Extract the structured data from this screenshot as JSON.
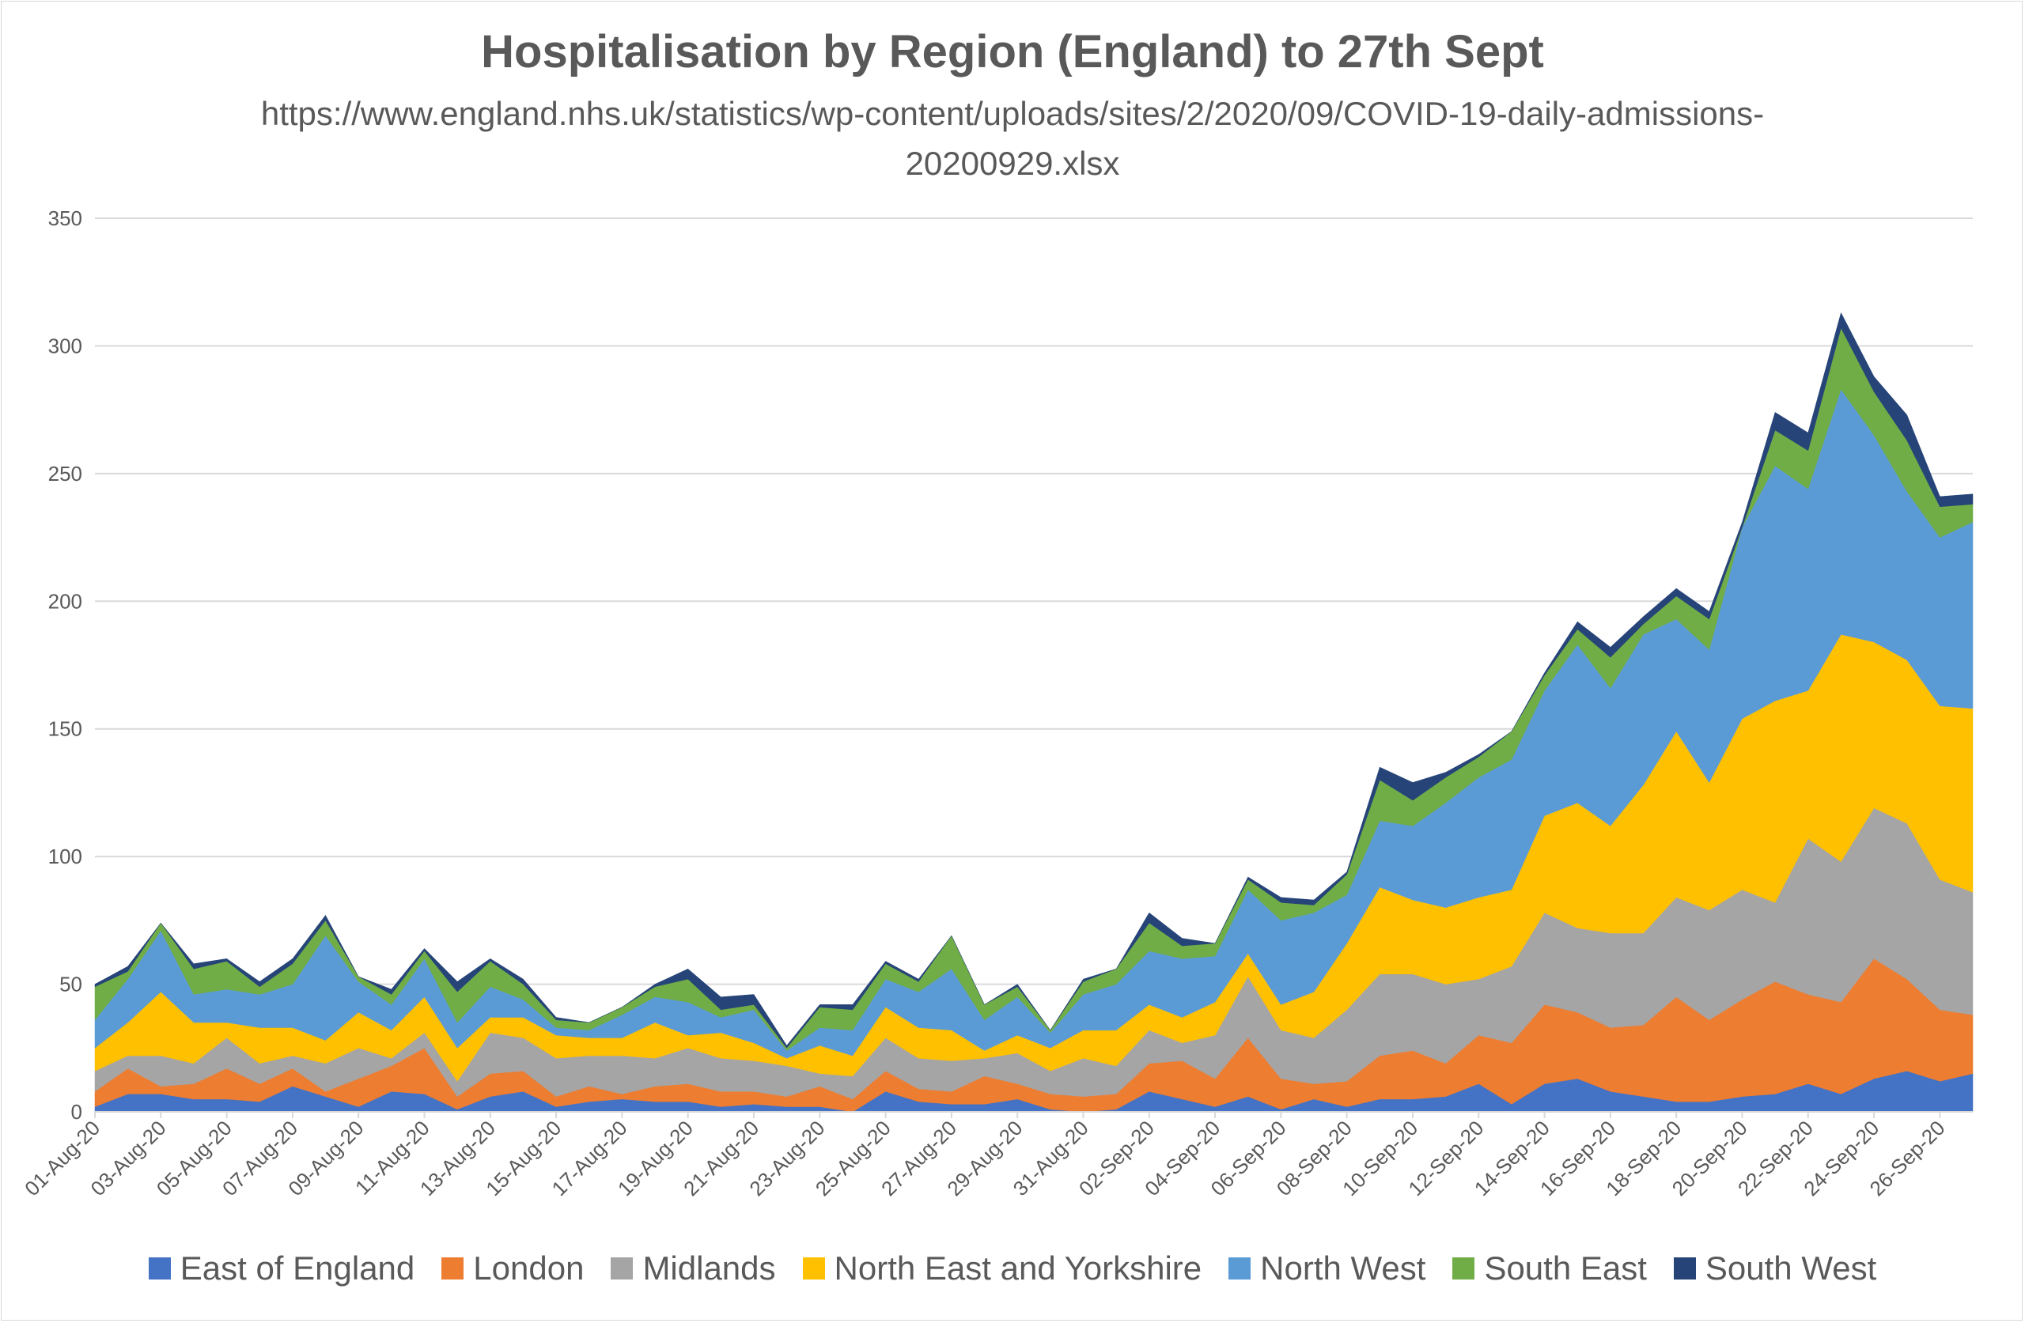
{
  "title": "Hospitalisation by Region (England) to 27th Sept",
  "subtitle": "https://www.england.nhs.uk/statistics/wp-content/uploads/sites/2/2020/09/COVID-19-daily-admissions-20200929.xlsx",
  "chart_data": {
    "type": "area",
    "stacked": true,
    "title": "Hospitalisation by Region (England) to 27th Sept",
    "subtitle": "https://www.england.nhs.uk/statistics/wp-content/uploads/sites/2/2020/09/COVID-19-daily-admissions-20200929.xlsx",
    "xlabel": "",
    "ylabel": "",
    "ylim": [
      0,
      350
    ],
    "yticks": [
      0,
      50,
      100,
      150,
      200,
      250,
      300,
      350
    ],
    "grid": true,
    "legend_position": "bottom",
    "x": [
      "01-Aug-20",
      "02-Aug-20",
      "03-Aug-20",
      "04-Aug-20",
      "05-Aug-20",
      "06-Aug-20",
      "07-Aug-20",
      "08-Aug-20",
      "09-Aug-20",
      "10-Aug-20",
      "11-Aug-20",
      "12-Aug-20",
      "13-Aug-20",
      "14-Aug-20",
      "15-Aug-20",
      "16-Aug-20",
      "17-Aug-20",
      "18-Aug-20",
      "19-Aug-20",
      "20-Aug-20",
      "21-Aug-20",
      "22-Aug-20",
      "23-Aug-20",
      "24-Aug-20",
      "25-Aug-20",
      "26-Aug-20",
      "27-Aug-20",
      "28-Aug-20",
      "29-Aug-20",
      "30-Aug-20",
      "31-Aug-20",
      "01-Sep-20",
      "02-Sep-20",
      "03-Sep-20",
      "04-Sep-20",
      "05-Sep-20",
      "06-Sep-20",
      "07-Sep-20",
      "08-Sep-20",
      "09-Sep-20",
      "10-Sep-20",
      "11-Sep-20",
      "12-Sep-20",
      "13-Sep-20",
      "14-Sep-20",
      "15-Sep-20",
      "16-Sep-20",
      "17-Sep-20",
      "18-Sep-20",
      "19-Sep-20",
      "20-Sep-20",
      "21-Sep-20",
      "22-Sep-20",
      "23-Sep-20",
      "24-Sep-20",
      "25-Sep-20",
      "26-Sep-20",
      "27-Sep-20"
    ],
    "xtick_labels": [
      "01-Aug-20",
      "03-Aug-20",
      "05-Aug-20",
      "07-Aug-20",
      "09-Aug-20",
      "11-Aug-20",
      "13-Aug-20",
      "15-Aug-20",
      "17-Aug-20",
      "19-Aug-20",
      "21-Aug-20",
      "23-Aug-20",
      "25-Aug-20",
      "27-Aug-20",
      "29-Aug-20",
      "31-Aug-20",
      "02-Sep-20",
      "04-Sep-20",
      "06-Sep-20",
      "08-Sep-20",
      "10-Sep-20",
      "12-Sep-20",
      "14-Sep-20",
      "16-Sep-20",
      "18-Sep-20",
      "20-Sep-20",
      "22-Sep-20",
      "24-Sep-20",
      "26-Sep-20"
    ],
    "series": [
      {
        "name": "East of England",
        "color": "#4472C4",
        "values": [
          2,
          7,
          7,
          5,
          5,
          4,
          10,
          6,
          2,
          8,
          7,
          1,
          6,
          8,
          2,
          4,
          5,
          4,
          4,
          2,
          3,
          2,
          2,
          0,
          8,
          4,
          3,
          3,
          5,
          1,
          0,
          1,
          8,
          5,
          2,
          6,
          1,
          5,
          2,
          5,
          5,
          6,
          11,
          3,
          11,
          13,
          8,
          6,
          4,
          4,
          6,
          7,
          11,
          7,
          13,
          16,
          12,
          15
        ]
      },
      {
        "name": "London",
        "color": "#ED7D31",
        "values": [
          6,
          10,
          3,
          6,
          12,
          7,
          7,
          2,
          11,
          10,
          18,
          5,
          9,
          8,
          4,
          6,
          2,
          6,
          7,
          6,
          5,
          4,
          8,
          5,
          8,
          5,
          5,
          11,
          6,
          6,
          6,
          6,
          11,
          15,
          11,
          23,
          12,
          6,
          10,
          17,
          19,
          13,
          19,
          24,
          31,
          26,
          25,
          28,
          41,
          32,
          38,
          44,
          35,
          36,
          47,
          36,
          28,
          23
        ]
      },
      {
        "name": "Midlands",
        "color": "#A5A5A5",
        "values": [
          8,
          5,
          12,
          8,
          12,
          8,
          5,
          11,
          12,
          3,
          6,
          6,
          16,
          13,
          15,
          12,
          15,
          11,
          14,
          13,
          12,
          12,
          5,
          9,
          13,
          12,
          12,
          7,
          12,
          9,
          15,
          11,
          13,
          7,
          17,
          24,
          19,
          18,
          28,
          32,
          30,
          31,
          22,
          30,
          36,
          33,
          37,
          36,
          39,
          43,
          43,
          31,
          61,
          55,
          59,
          61,
          51,
          48
        ]
      },
      {
        "name": "North East and Yorkshire",
        "color": "#FFC000",
        "values": [
          9,
          13,
          25,
          16,
          6,
          14,
          11,
          9,
          14,
          11,
          14,
          13,
          6,
          8,
          9,
          7,
          7,
          14,
          5,
          10,
          7,
          3,
          11,
          8,
          12,
          12,
          12,
          3,
          7,
          9,
          11,
          14,
          10,
          10,
          13,
          9,
          10,
          18,
          26,
          34,
          29,
          30,
          32,
          30,
          38,
          49,
          42,
          58,
          65,
          50,
          67,
          79,
          58,
          89,
          65,
          64,
          68,
          72
        ]
      },
      {
        "name": "North West",
        "color": "#5B9BD5",
        "values": [
          11,
          17,
          24,
          11,
          13,
          13,
          17,
          41,
          12,
          10,
          15,
          10,
          12,
          7,
          3,
          3,
          9,
          10,
          13,
          6,
          13,
          3,
          7,
          10,
          11,
          14,
          24,
          12,
          15,
          6,
          14,
          18,
          21,
          23,
          18,
          25,
          33,
          31,
          19,
          26,
          29,
          41,
          47,
          51,
          49,
          62,
          54,
          59,
          44,
          52,
          75,
          92,
          79,
          96,
          81,
          66,
          66,
          73
        ]
      },
      {
        "name": "South East",
        "color": "#70AD47",
        "values": [
          13,
          3,
          3,
          10,
          11,
          3,
          8,
          6,
          2,
          4,
          3,
          12,
          10,
          6,
          3,
          3,
          3,
          4,
          9,
          3,
          2,
          1,
          8,
          8,
          6,
          4,
          13,
          6,
          4,
          1,
          5,
          6,
          11,
          5,
          5,
          4,
          7,
          3,
          8,
          16,
          10,
          10,
          8,
          11,
          6,
          6,
          12,
          4,
          9,
          12,
          0,
          14,
          15,
          24,
          17,
          20,
          12,
          7
        ]
      },
      {
        "name": "South West",
        "color": "#264478",
        "values": [
          1,
          2,
          0,
          2,
          1,
          2,
          2,
          2,
          0,
          2,
          1,
          4,
          1,
          2,
          1,
          0,
          0,
          1,
          4,
          5,
          4,
          1,
          1,
          2,
          1,
          1,
          0,
          0,
          1,
          0,
          1,
          0,
          4,
          3,
          0,
          1,
          2,
          2,
          1,
          5,
          7,
          2,
          1,
          0,
          1,
          3,
          4,
          3,
          3,
          3,
          2,
          7,
          7,
          6,
          6,
          10,
          4,
          4
        ]
      }
    ]
  },
  "legend": {
    "items": [
      {
        "label": "East of England",
        "color": "#4472C4"
      },
      {
        "label": "London",
        "color": "#ED7D31"
      },
      {
        "label": "Midlands",
        "color": "#A5A5A5"
      },
      {
        "label": "North East and Yorkshire",
        "color": "#FFC000"
      },
      {
        "label": "North West",
        "color": "#5B9BD5"
      },
      {
        "label": "South East",
        "color": "#70AD47"
      },
      {
        "label": "South West",
        "color": "#264478"
      }
    ]
  }
}
